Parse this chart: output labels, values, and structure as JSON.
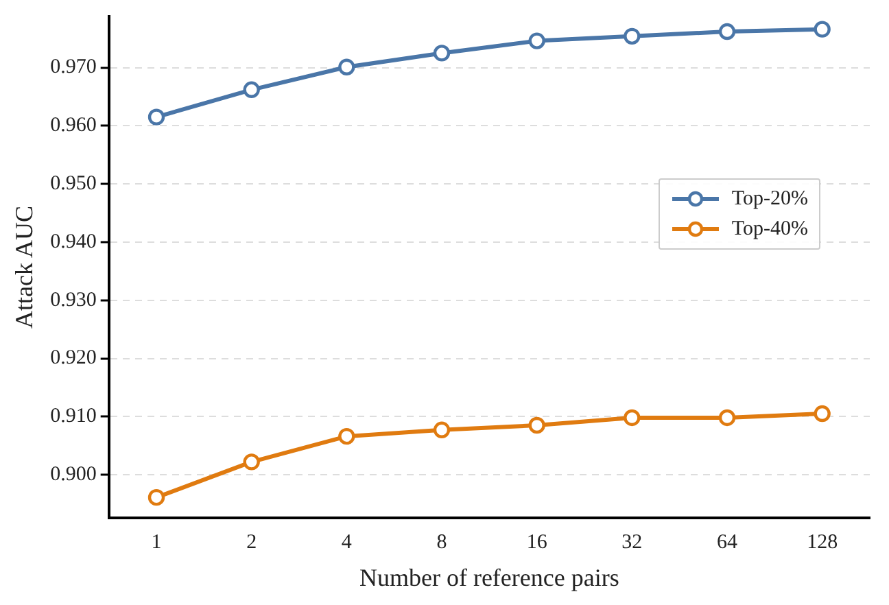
{
  "chart_data": {
    "type": "line",
    "xlabel": "Number of reference pairs",
    "ylabel": "Attack AUC",
    "categories": [
      "1",
      "2",
      "4",
      "8",
      "16",
      "32",
      "64",
      "128"
    ],
    "series": [
      {
        "name": "Top-20%",
        "color": "#4a76a8",
        "values": [
          0.9615,
          0.9662,
          0.9701,
          0.9725,
          0.9746,
          0.9754,
          0.9762,
          0.9766
        ]
      },
      {
        "name": "Top-40%",
        "color": "#e07b10",
        "values": [
          0.8961,
          0.9022,
          0.9066,
          0.9077,
          0.9085,
          0.9098,
          0.9098,
          0.9105
        ]
      }
    ],
    "ylim": [
      0.8926,
      0.9788
    ],
    "yticks": [
      {
        "value": 0.9,
        "label": "0.900"
      },
      {
        "value": 0.91,
        "label": "0.910"
      },
      {
        "value": 0.92,
        "label": "0.920"
      },
      {
        "value": 0.93,
        "label": "0.930"
      },
      {
        "value": 0.94,
        "label": "0.940"
      },
      {
        "value": 0.95,
        "label": "0.950"
      },
      {
        "value": 0.96,
        "label": "0.960"
      },
      {
        "value": 0.97,
        "label": "0.970"
      }
    ],
    "grid": "y",
    "legend": "right",
    "marker": "circle",
    "line_style": "solid"
  }
}
